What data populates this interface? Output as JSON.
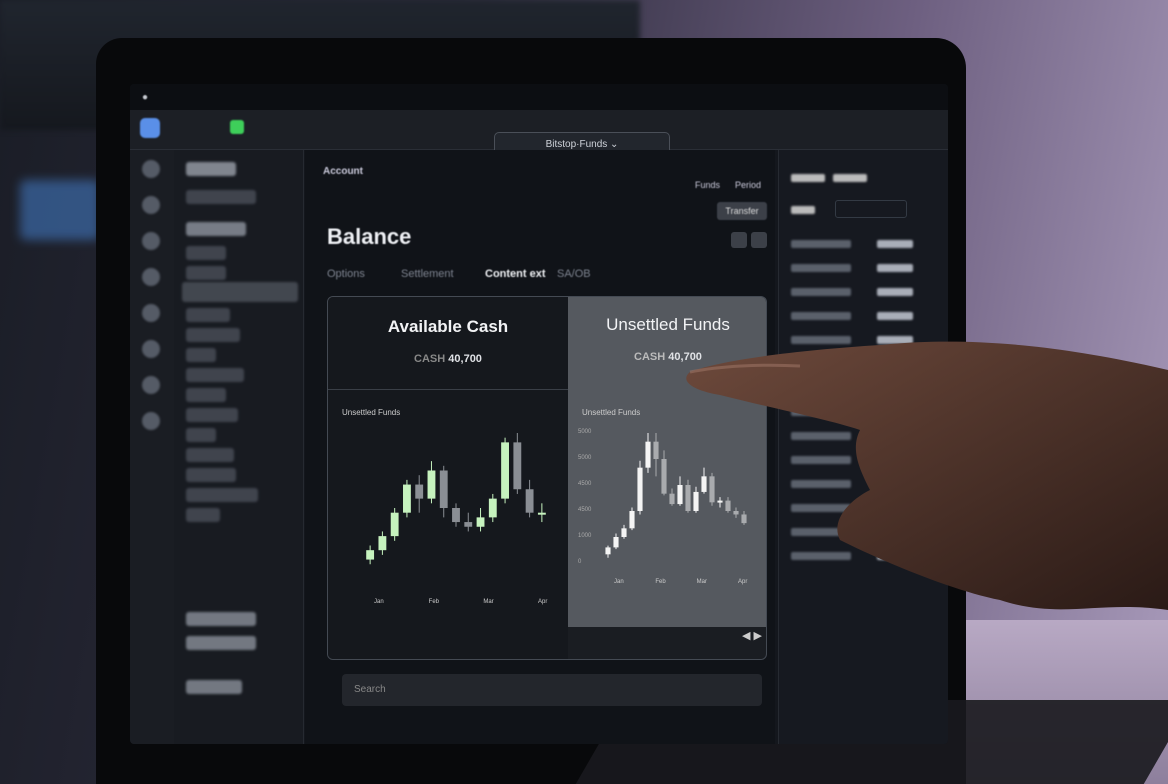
{
  "browser": {
    "address": "Bitstop·Funds"
  },
  "header": {
    "breadcrumb": "Account",
    "filter_a": "Funds",
    "filter_b": "Period",
    "action_button": "Transfer"
  },
  "page": {
    "title": "Balance"
  },
  "tabs": [
    {
      "label": "Options"
    },
    {
      "label": "Settlement"
    },
    {
      "label": "Content ext"
    },
    {
      "label": "SA/OB"
    }
  ],
  "cards": {
    "available": {
      "title": "Available Cash",
      "currency": "CASH",
      "value": "40,700"
    },
    "unsettled": {
      "title": "Unsettled Funds",
      "currency": "CASH",
      "value": "40,700"
    }
  },
  "bottom": {
    "placeholder": "Search"
  },
  "colors": {
    "accent_green": "#b8f0b0",
    "screen_bg": "#14171d",
    "panel_gray": "#55595f"
  },
  "chart_data": [
    {
      "type": "candlestick",
      "title": "Unsettled Funds",
      "x_ticks": [
        "Jan",
        "Feb",
        "Mar",
        "Apr"
      ],
      "y_ticks": [],
      "ohlc": [
        [
          10,
          14,
          8,
          16
        ],
        [
          14,
          20,
          12,
          22
        ],
        [
          20,
          30,
          18,
          32
        ],
        [
          30,
          42,
          28,
          44
        ],
        [
          42,
          36,
          30,
          46
        ],
        [
          36,
          48,
          34,
          52
        ],
        [
          48,
          32,
          28,
          50
        ],
        [
          32,
          26,
          24,
          34
        ],
        [
          26,
          24,
          22,
          30
        ],
        [
          24,
          28,
          22,
          32
        ],
        [
          28,
          36,
          26,
          38
        ],
        [
          36,
          60,
          34,
          62
        ],
        [
          60,
          40,
          38,
          64
        ],
        [
          40,
          30,
          28,
          44
        ],
        [
          30,
          30,
          26,
          34
        ]
      ]
    },
    {
      "type": "candlestick",
      "title": "Unsettled Funds",
      "x_ticks": [
        "Jan",
        "Feb",
        "Mar",
        "Apr"
      ],
      "y_ticks": [
        "0",
        "1000",
        "4500",
        "4500",
        "5000",
        "5000"
      ],
      "ohlc": [
        [
          10,
          18,
          6,
          20
        ],
        [
          18,
          30,
          16,
          34
        ],
        [
          30,
          40,
          28,
          44
        ],
        [
          40,
          60,
          38,
          64
        ],
        [
          60,
          110,
          56,
          118
        ],
        [
          110,
          140,
          104,
          150
        ],
        [
          140,
          120,
          100,
          150
        ],
        [
          120,
          80,
          78,
          130
        ],
        [
          80,
          68,
          66,
          86
        ],
        [
          68,
          90,
          66,
          100
        ],
        [
          90,
          60,
          58,
          96
        ],
        [
          60,
          82,
          58,
          88
        ],
        [
          82,
          100,
          80,
          110
        ],
        [
          100,
          70,
          66,
          104
        ],
        [
          70,
          72,
          64,
          76
        ],
        [
          72,
          60,
          58,
          76
        ],
        [
          60,
          56,
          52,
          64
        ],
        [
          56,
          46,
          44,
          60
        ]
      ]
    }
  ]
}
